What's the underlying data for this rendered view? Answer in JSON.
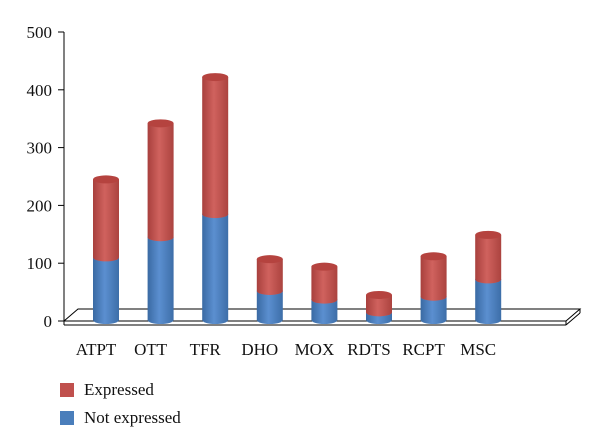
{
  "chart_data": {
    "type": "bar",
    "stacked": true,
    "style": "3d-cylinder",
    "categories": [
      "ATPT",
      "OTT",
      "TFR",
      "DHO",
      "MOX",
      "RDTS",
      "RCPT",
      "MSC"
    ],
    "series": [
      {
        "name": "Not expressed",
        "color": "#4a7ebb",
        "values": [
          110,
          145,
          185,
          52,
          37,
          15,
          42,
          72
        ]
      },
      {
        "name": "Expressed",
        "color": "#c0504d",
        "values": [
          135,
          197,
          237,
          55,
          57,
          30,
          70,
          77
        ]
      }
    ],
    "y_ticks": [
      "0",
      "100",
      "200",
      "300",
      "400",
      "500"
    ],
    "ylim": [
      0,
      500
    ],
    "legend_position": "bottom-left",
    "grid": false,
    "title": "",
    "xlabel": "",
    "ylabel": ""
  }
}
